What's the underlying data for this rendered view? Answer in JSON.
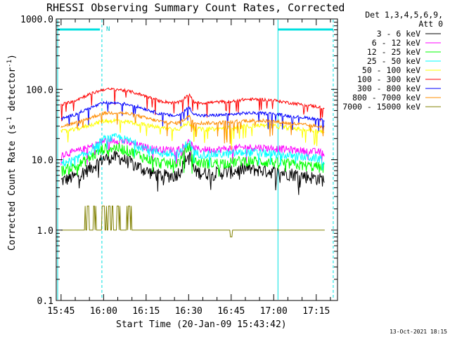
{
  "chart_data": {
    "type": "line",
    "title": "RHESSI Observing Summary Count Rates, Corrected",
    "xlabel": "Start Time (20-Jan-09 15:43:42)",
    "ylabel_main": "Corrected Count Rate (s",
    "ylabel_sup1": "-1",
    "ylabel_mid": " detector",
    "ylabel_sup2": "-1",
    "ylabel_end": ")",
    "y_scale": "log",
    "ylim": [
      0.1,
      1000
    ],
    "xlim_minutes": [
      -1.7,
      97.5
    ],
    "x_ticks": [
      {
        "label": "15:45",
        "m": 0
      },
      {
        "label": "16:00",
        "m": 15
      },
      {
        "label": "16:15",
        "m": 30
      },
      {
        "label": "16:30",
        "m": 45
      },
      {
        "label": "16:45",
        "m": 60
      },
      {
        "label": "17:00",
        "m": 75
      },
      {
        "label": "17:15",
        "m": 90
      }
    ],
    "y_ticks": [
      {
        "label": "1000.0",
        "v": 1000
      },
      {
        "label": "100.0",
        "v": 100
      },
      {
        "label": "10.0",
        "v": 10
      },
      {
        "label": "1.0",
        "v": 1
      },
      {
        "label": "0.1",
        "v": 0.1
      }
    ],
    "legend_header": [
      "Det 1,3,4,5,6,9,",
      "Att 0"
    ],
    "legend_position": "right",
    "series": [
      {
        "name": "3 - 6 keV",
        "color": "#000000",
        "x": [
          0,
          5,
          10,
          15,
          20,
          25,
          30,
          35,
          40,
          42,
          45,
          47,
          50,
          55,
          60,
          65,
          70,
          75,
          80,
          85,
          90,
          93
        ],
        "values": [
          5,
          5.8,
          7.5,
          10.5,
          11,
          9,
          7,
          6,
          6,
          7,
          12,
          7,
          6.5,
          6.5,
          6.8,
          7.5,
          7.2,
          6.8,
          6.5,
          6,
          5.5,
          5.2
        ]
      },
      {
        "name": "6 - 12 keV",
        "color": "#ff00ff",
        "x": [
          0,
          5,
          10,
          15,
          20,
          25,
          30,
          35,
          40,
          42,
          45,
          47,
          50,
          55,
          60,
          65,
          70,
          75,
          80,
          85,
          90,
          93
        ],
        "values": [
          12,
          13,
          15,
          18.5,
          19,
          17,
          15,
          14,
          14,
          14.5,
          18,
          14.5,
          14,
          14,
          14.5,
          15,
          15,
          14.5,
          14,
          13.5,
          13,
          12.5
        ]
      },
      {
        "name": "12 - 25 keV",
        "color": "#00ff00",
        "x": [
          0,
          5,
          10,
          15,
          20,
          25,
          30,
          35,
          40,
          42,
          45,
          47,
          50,
          55,
          60,
          65,
          70,
          75,
          80,
          85,
          90,
          93
        ],
        "values": [
          7,
          8,
          10.5,
          14.5,
          15,
          13,
          10.5,
          9,
          8.8,
          9.5,
          16,
          9.5,
          9,
          9,
          9.2,
          9.8,
          9.5,
          9.2,
          8.8,
          8.3,
          8,
          7.6
        ]
      },
      {
        "name": "25 - 50 keV",
        "color": "#00ffff",
        "x": [
          0,
          5,
          10,
          15,
          20,
          25,
          30,
          35,
          40,
          42,
          45,
          47,
          50,
          55,
          60,
          65,
          70,
          75,
          80,
          85,
          90,
          93
        ],
        "values": [
          9,
          10,
          13,
          19.5,
          21,
          18,
          14.5,
          12.5,
          12,
          12.5,
          18.5,
          12.5,
          12,
          12,
          12.2,
          12.8,
          12.5,
          12,
          11.5,
          11,
          10.5,
          10
        ]
      },
      {
        "name": "50 - 100 keV",
        "color": "#ffff00",
        "x": [
          0,
          5,
          10,
          15,
          20,
          25,
          30,
          35,
          40,
          42,
          45,
          47,
          50,
          55,
          60,
          65,
          70,
          75,
          80,
          85,
          90,
          93
        ],
        "values": [
          25,
          27,
          31,
          35.5,
          36,
          34,
          31,
          28.5,
          27.5,
          28,
          34,
          28,
          27,
          27.5,
          28.5,
          30,
          31,
          30,
          28.5,
          27,
          25.5,
          24.5
        ]
      },
      {
        "name": "100 - 300 keV",
        "color": "#ff0000",
        "x": [
          0,
          5,
          10,
          15,
          20,
          25,
          30,
          35,
          40,
          42,
          45,
          47,
          50,
          55,
          60,
          65,
          70,
          75,
          80,
          85,
          90,
          93
        ],
        "values": [
          60,
          70,
          85,
          100,
          100,
          92,
          80,
          68,
          64,
          66,
          85,
          66,
          64,
          66,
          68,
          72,
          72,
          70,
          65,
          61,
          57,
          54
        ]
      },
      {
        "name": "300 - 800 keV",
        "color": "#0000ff",
        "x": [
          0,
          5,
          10,
          15,
          20,
          25,
          30,
          35,
          40,
          42,
          45,
          47,
          50,
          55,
          60,
          65,
          70,
          75,
          80,
          85,
          90,
          93
        ],
        "values": [
          38,
          44,
          54,
          64,
          64,
          60,
          52,
          45,
          42,
          44,
          56,
          44,
          42,
          43,
          44,
          46,
          46,
          45,
          42,
          40,
          38,
          36.5
        ]
      },
      {
        "name": "800 - 7000 keV",
        "color": "#ff8c00",
        "x": [
          0,
          5,
          10,
          15,
          20,
          25,
          30,
          35,
          40,
          42,
          45,
          47,
          50,
          55,
          60,
          65,
          70,
          75,
          80,
          85,
          90,
          93
        ],
        "values": [
          30,
          33,
          39,
          46,
          47,
          44,
          39,
          35,
          33,
          34,
          42,
          34,
          33,
          33.5,
          34.5,
          36,
          36,
          35,
          33,
          31.5,
          30,
          29
        ]
      },
      {
        "name": "7000 - 15000 keV",
        "color": "#808000",
        "x": [
          8,
          9,
          10,
          11,
          12,
          13,
          14,
          15,
          16,
          17,
          18,
          19,
          20,
          21,
          22,
          23,
          24,
          25,
          26,
          30,
          35,
          40,
          45,
          50,
          55,
          60,
          65,
          70,
          75,
          80,
          85,
          90
        ],
        "values": [
          1,
          2.2,
          2.2,
          1,
          2.2,
          1,
          2.2,
          2.2,
          1,
          2.2,
          2.2,
          1,
          2.2,
          2.2,
          1,
          2.2,
          2.2,
          1,
          1,
          1,
          1,
          1,
          1,
          1,
          1,
          0.8,
          1,
          1,
          1,
          1,
          1,
          1
        ]
      }
    ],
    "annotations": {
      "marker_label": "N",
      "vertical_lines_minutes": [
        -1.2,
        14.4,
        76.5,
        96.0
      ],
      "horizontal_segments_minutes": [
        [
          -1.2,
          13.7
        ],
        [
          76.5,
          96.0
        ]
      ]
    },
    "footer_date": "13-Oct-2021 18:15"
  }
}
